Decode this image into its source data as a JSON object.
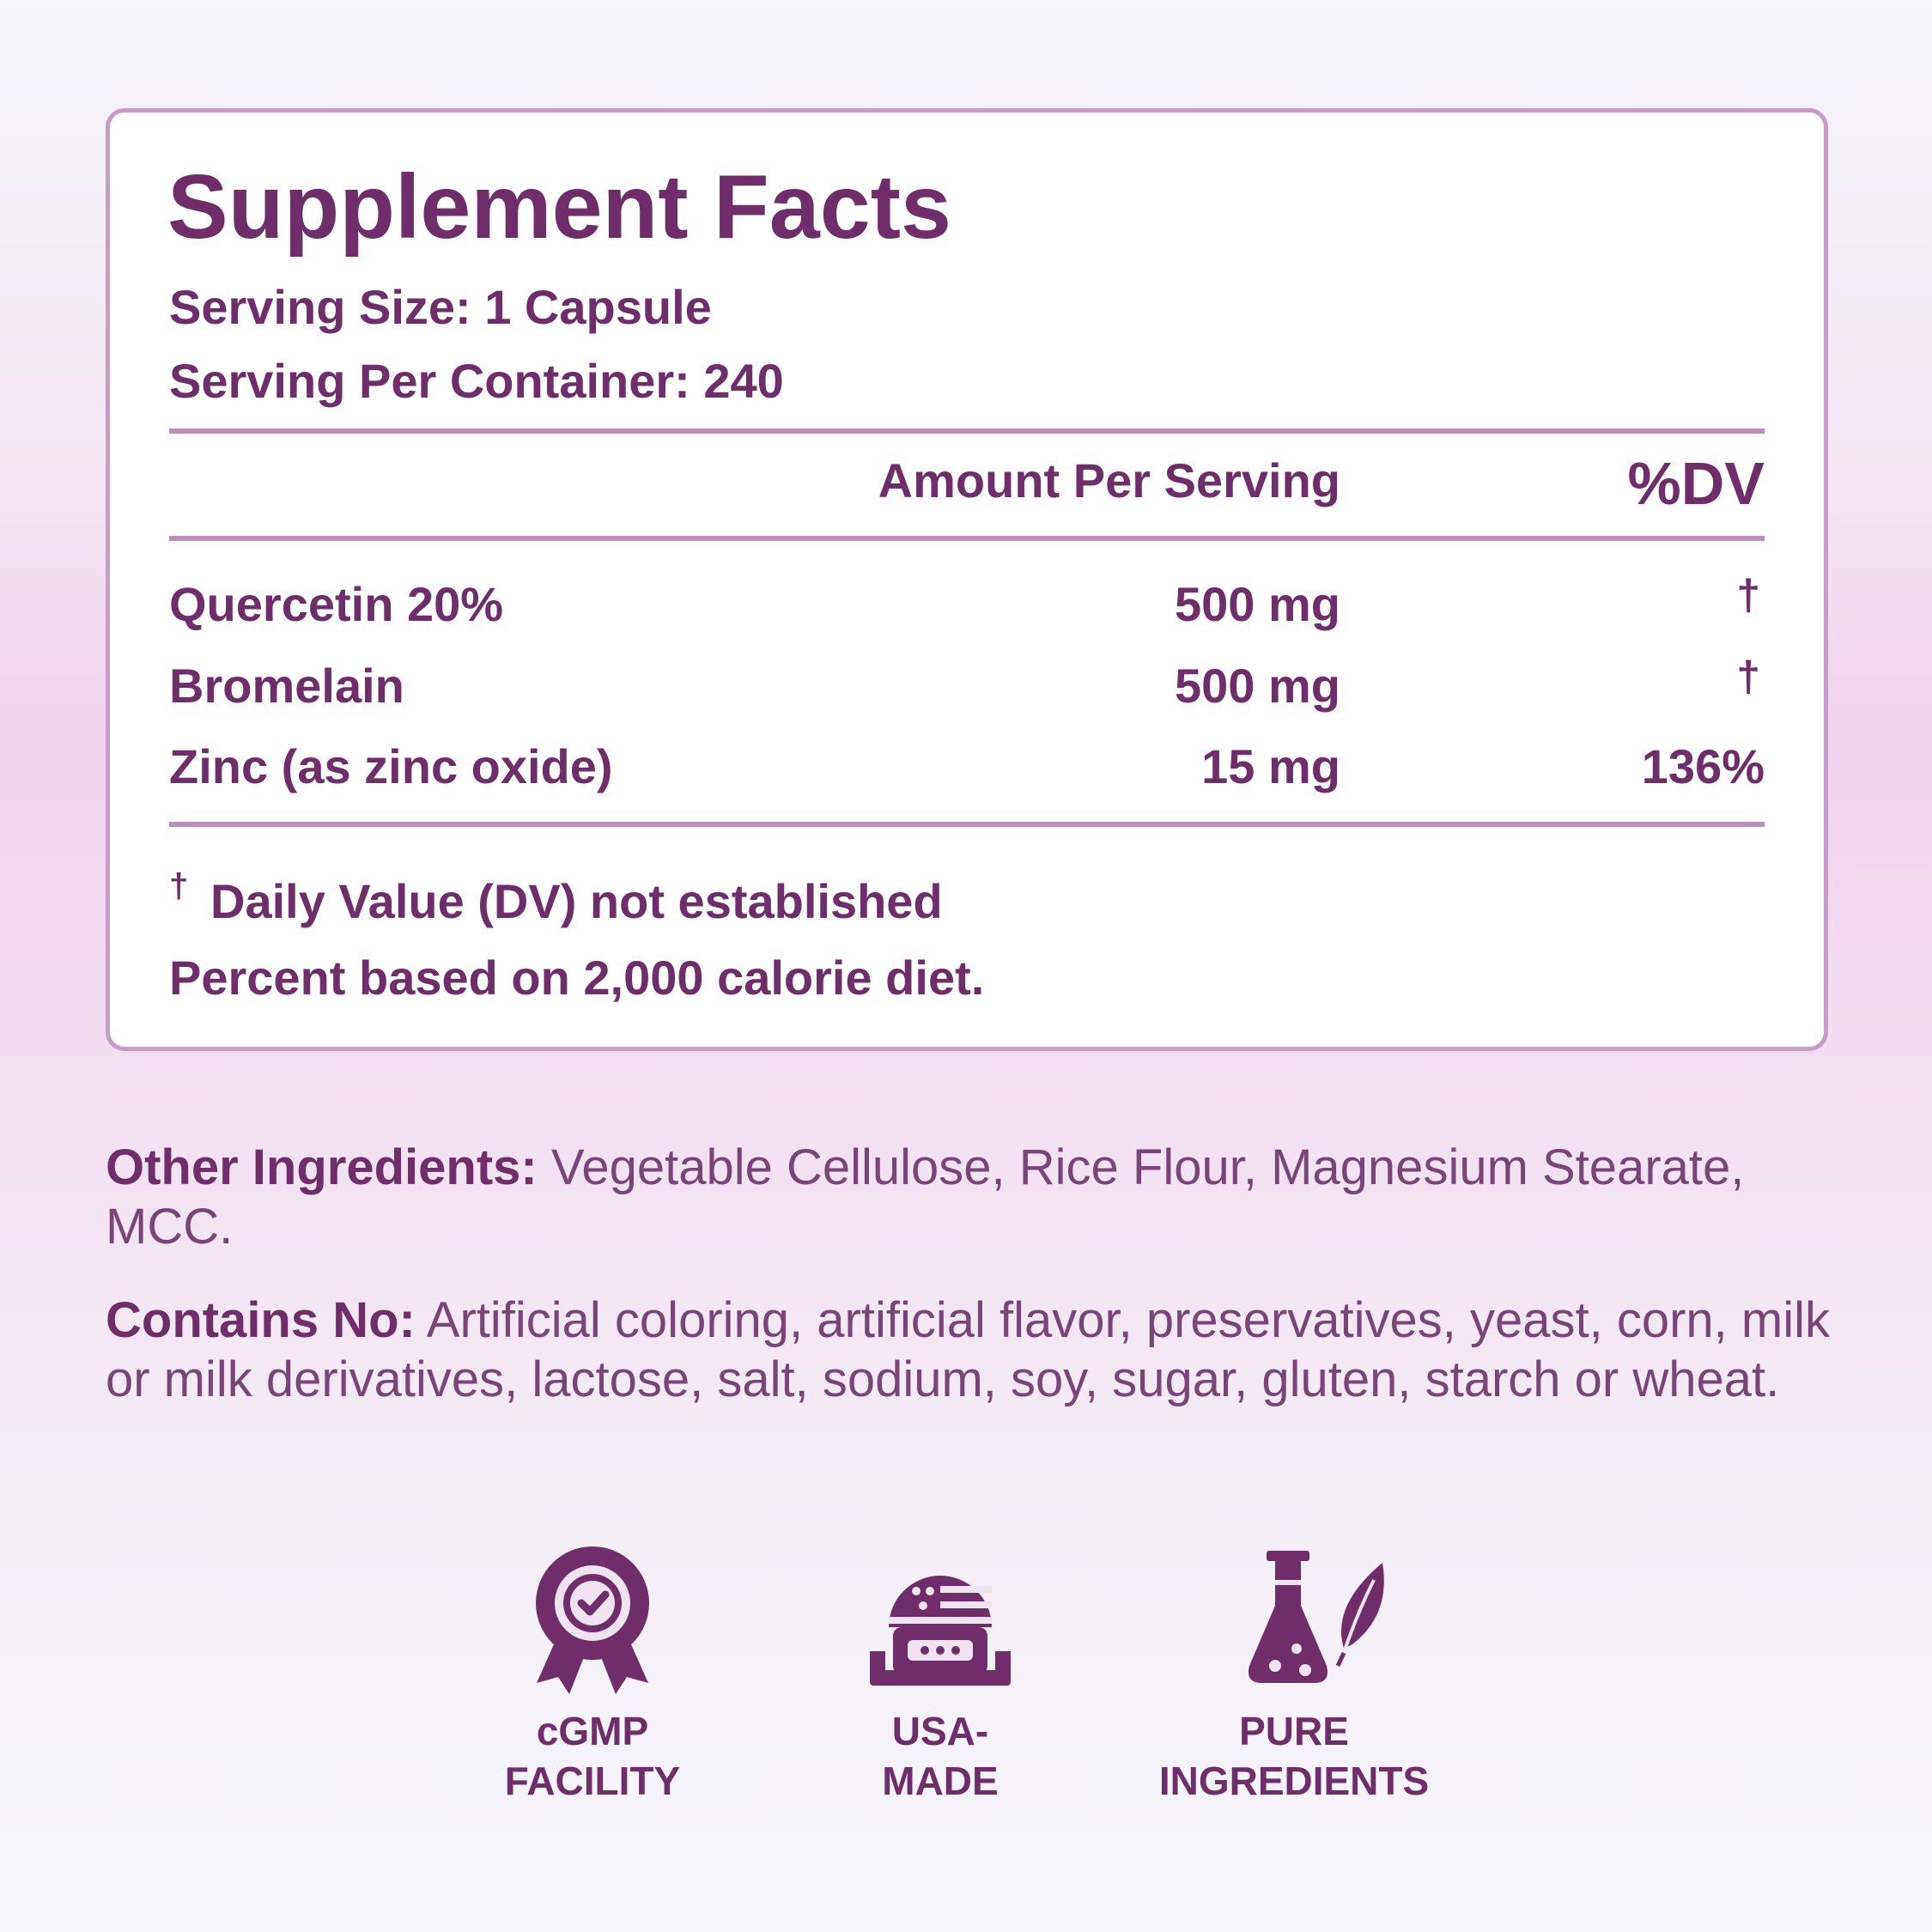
{
  "header": {
    "title": "Supplement Facts",
    "serving_size": "Serving Size: 1 Capsule",
    "servings_per_container": "Serving Per Container: 240"
  },
  "table": {
    "columns": [
      "Amount Per Serving",
      "%DV"
    ],
    "rows": [
      [
        "Quercetin 20%",
        "500 mg",
        "†"
      ],
      [
        "Bromelain",
        "500 mg",
        "†"
      ],
      [
        "Zinc (as zinc oxide)",
        "15 mg",
        "136%"
      ]
    ]
  },
  "footnotes": {
    "dagger": "†",
    "dv_note": "Daily Value (DV) not established",
    "calorie_note": "Percent based on 2,000 calorie diet."
  },
  "other_ingredients": {
    "label": "Other Ingredients:",
    "text": "Vegetable Cellulose, Rice Flour, Magnesium Stearate, MCC."
  },
  "contains_no": {
    "label": "Contains No:",
    "text": "Artificial coloring, artificial flavor, preservatives, yeast, corn, milk or milk derivatives, lactose, salt, sodium, soy, sugar, gluten, starch or wheat."
  },
  "badges": [
    {
      "line1": "cGMP",
      "line2": "FACILITY"
    },
    {
      "line1": "USA-",
      "line2": "MADE"
    },
    {
      "line1": "PURE",
      "line2": "INGREDIENTS"
    }
  ]
}
